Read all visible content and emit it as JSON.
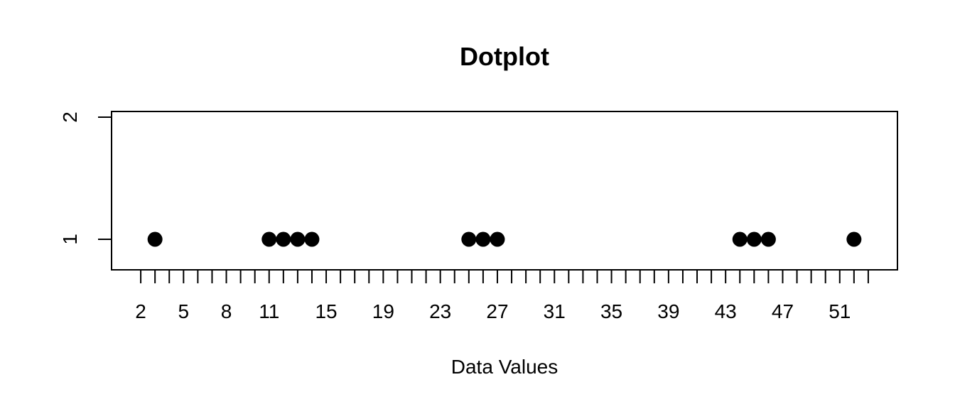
{
  "chart_data": {
    "type": "scatter",
    "title": "Dotplot",
    "xlabel": "Data Values",
    "ylabel": "",
    "xlim": [
      1,
      54
    ],
    "ylim": [
      1,
      2
    ],
    "x_ticks": [
      2,
      3,
      4,
      5,
      6,
      7,
      8,
      9,
      10,
      11,
      12,
      13,
      14,
      15,
      16,
      17,
      18,
      19,
      20,
      21,
      22,
      23,
      24,
      25,
      26,
      27,
      28,
      29,
      30,
      31,
      32,
      33,
      34,
      35,
      36,
      37,
      38,
      39,
      40,
      41,
      42,
      43,
      44,
      45,
      46,
      47,
      48,
      49,
      50,
      51,
      52,
      53
    ],
    "x_tick_labels": [
      "2",
      "5",
      "8",
      "11",
      "15",
      "19",
      "23",
      "27",
      "31",
      "35",
      "39",
      "43",
      "47",
      "51"
    ],
    "y_ticks": [
      "1",
      "2"
    ],
    "series": [
      {
        "values": [
          3,
          11,
          12,
          13,
          14,
          25,
          26,
          27,
          44,
          45,
          46,
          52
        ],
        "y": 1
      }
    ],
    "grid": false
  }
}
